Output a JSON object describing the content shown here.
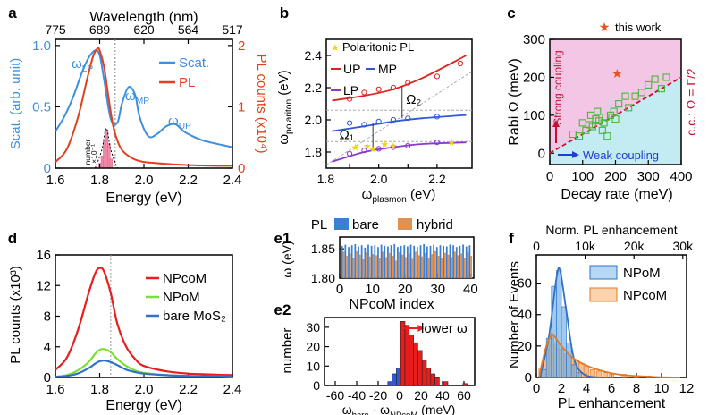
{
  "figure": {
    "title": "Strong plasmon-exciton coupling figure (panels a-f)"
  },
  "chart_data": [
    {
      "panel": "a",
      "type": "line",
      "xlabel": "Energy (eV)",
      "xlim": [
        1.6,
        2.4
      ],
      "xticks": [
        1.6,
        1.8,
        2.0,
        2.2,
        2.4
      ],
      "top_xlabel": "Wavelength (nm)",
      "top_ticks": [
        "775",
        "689",
        "620",
        "564",
        "517"
      ],
      "ylabel_left": "Scat. (arb. unit)",
      "ylim_left": [
        0,
        1.05
      ],
      "yticks_left": [
        0,
        0.5,
        1.0
      ],
      "ylabel_right": "PL counts (x10⁴)",
      "ylim_right": [
        0,
        2.1
      ],
      "yticks_right": [
        0,
        1,
        2
      ],
      "legend": [
        "Scat.",
        "PL"
      ],
      "annotations": [
        "ωLP",
        "ωMP",
        "ωUP",
        "number ×10⁻¹"
      ],
      "series": [
        {
          "name": "Scat.",
          "color": "#3d8fe0",
          "x": [
            1.6,
            1.64,
            1.68,
            1.72,
            1.75,
            1.78,
            1.8,
            1.82,
            1.85,
            1.88,
            1.9,
            1.93,
            1.96,
            1.98,
            2.02,
            2.06,
            2.1,
            2.14,
            2.18,
            2.22,
            2.26,
            2.3,
            2.35,
            2.4
          ],
          "y": [
            0.3,
            0.42,
            0.58,
            0.78,
            0.9,
            0.96,
            0.92,
            0.72,
            0.4,
            0.37,
            0.52,
            0.66,
            0.6,
            0.42,
            0.26,
            0.28,
            0.34,
            0.36,
            0.3,
            0.26,
            0.23,
            0.21,
            0.19,
            0.17
          ]
        },
        {
          "name": "PL",
          "color": "#e0401c",
          "x": [
            1.6,
            1.65,
            1.7,
            1.74,
            1.77,
            1.79,
            1.8,
            1.82,
            1.84,
            1.86,
            1.88,
            1.9,
            1.93,
            1.96,
            2.0,
            2.1,
            2.2,
            2.3,
            2.4
          ],
          "y": [
            0.1,
            0.3,
            0.8,
            1.4,
            1.82,
            1.95,
            1.92,
            1.65,
            1.15,
            0.7,
            0.45,
            0.3,
            0.2,
            0.14,
            0.1,
            0.07,
            0.05,
            0.04,
            0.04
          ]
        }
      ]
    },
    {
      "panel": "b",
      "type": "scatter",
      "xlabel": "ωplasmon (eV)",
      "ylabel": "ωpolariton (eV)",
      "xlim": [
        1.82,
        2.32
      ],
      "ylim": [
        1.7,
        2.5
      ],
      "xticks": [
        1.8,
        2.0,
        2.2
      ],
      "yticks": [
        1.8,
        2.0,
        2.2,
        2.4
      ],
      "legend": [
        "Polaritonic PL",
        "UP",
        "MP",
        "LP"
      ],
      "annotations": [
        "Ω₁",
        "Ω₂"
      ],
      "series": [
        {
          "name": "UP",
          "color": "#e02222",
          "x": [
            1.9,
            1.95,
            2.0,
            2.05,
            2.1,
            2.2,
            2.28
          ],
          "y": [
            2.13,
            2.17,
            2.19,
            2.2,
            2.23,
            2.27,
            2.35
          ]
        },
        {
          "name": "MP",
          "color": "#2f58d8",
          "x": [
            1.9,
            1.95,
            2.0,
            2.05,
            2.1,
            2.2
          ],
          "y": [
            1.98,
            1.97,
            1.99,
            2.0,
            2.01,
            2.02
          ]
        },
        {
          "name": "LP",
          "color": "#8a3ac8",
          "x": [
            1.9,
            1.95,
            2.0,
            2.05,
            2.1,
            2.2
          ],
          "y": [
            1.79,
            1.81,
            1.82,
            1.83,
            1.84,
            1.86
          ]
        },
        {
          "name": "Polaritonic PL",
          "color": "#f2d016",
          "x": [
            1.92,
            1.96,
            1.98,
            2.02,
            2.05,
            2.25
          ],
          "y": [
            1.83,
            1.84,
            1.82,
            1.85,
            1.84,
            1.86
          ]
        }
      ]
    },
    {
      "panel": "c",
      "type": "scatter",
      "xlabel": "Decay rate (meV)",
      "ylabel": "Rabi Ω (meV)",
      "xlim": [
        0,
        400
      ],
      "ylim": [
        -30,
        300
      ],
      "xticks": [
        0,
        100,
        200,
        300,
        400
      ],
      "yticks": [
        0,
        100,
        200,
        300
      ],
      "legend": [
        "this work"
      ],
      "regions": [
        "Strong coupling",
        "Weak coupling"
      ],
      "criterion": "c.c.: Ω = Γ/2",
      "this_work": {
        "x": 205,
        "y": 210
      },
      "points": [
        [
          70,
          50
        ],
        [
          90,
          45
        ],
        [
          110,
          60
        ],
        [
          120,
          75
        ],
        [
          130,
          70
        ],
        [
          140,
          90
        ],
        [
          150,
          85
        ],
        [
          160,
          60
        ],
        [
          165,
          80
        ],
        [
          170,
          95
        ],
        [
          175,
          45
        ],
        [
          185,
          100
        ],
        [
          195,
          110
        ],
        [
          200,
          90
        ],
        [
          210,
          130
        ],
        [
          230,
          150
        ],
        [
          240,
          120
        ],
        [
          260,
          150
        ],
        [
          280,
          160
        ],
        [
          300,
          180
        ],
        [
          320,
          195
        ],
        [
          340,
          170
        ],
        [
          355,
          200
        ],
        [
          100,
          80
        ],
        [
          125,
          100
        ],
        [
          145,
          110
        ]
      ]
    },
    {
      "panel": "d",
      "type": "line",
      "xlabel": "Energy (eV)",
      "ylabel": "PL counts (x10³)",
      "xlim": [
        1.6,
        2.4
      ],
      "ylim": [
        0,
        16
      ],
      "xticks": [
        1.6,
        1.8,
        2.0,
        2.2,
        2.4
      ],
      "yticks": [
        0,
        4,
        8,
        12,
        16
      ],
      "series": [
        {
          "name": "NPcoM",
          "color": "#e81e1e",
          "x": [
            1.6,
            1.65,
            1.7,
            1.75,
            1.78,
            1.8,
            1.82,
            1.85,
            1.88,
            1.92,
            1.96,
            2.0,
            2.1,
            2.2,
            2.3,
            2.4
          ],
          "y": [
            1.0,
            2.5,
            6.0,
            11.0,
            13.6,
            14.3,
            13.8,
            11.0,
            7.0,
            4.0,
            2.4,
            1.5,
            0.8,
            0.5,
            0.4,
            0.3
          ]
        },
        {
          "name": "NPoM",
          "color": "#7ce032",
          "x": [
            1.6,
            1.65,
            1.7,
            1.75,
            1.78,
            1.8,
            1.82,
            1.85,
            1.88,
            1.92,
            1.96,
            2.0,
            2.1,
            2.2,
            2.3,
            2.4
          ],
          "y": [
            0.1,
            0.3,
            0.9,
            2.0,
            3.1,
            3.6,
            3.7,
            3.3,
            2.4,
            1.5,
            0.9,
            0.6,
            0.3,
            0.2,
            0.15,
            0.1
          ]
        },
        {
          "name": "bare MoS₂",
          "color": "#2f72c8",
          "x": [
            1.6,
            1.65,
            1.7,
            1.75,
            1.78,
            1.8,
            1.82,
            1.85,
            1.88,
            1.92,
            1.96,
            2.0,
            2.1,
            2.2,
            2.3,
            2.4
          ],
          "y": [
            0.1,
            0.2,
            0.5,
            1.2,
            1.8,
            2.1,
            2.2,
            2.0,
            1.6,
            1.0,
            0.7,
            0.5,
            0.3,
            0.2,
            0.15,
            0.1
          ]
        }
      ]
    },
    {
      "panel": "e1",
      "type": "bar",
      "xlabel": "NPcoM index",
      "ylabel": "ω (eV)",
      "xlim": [
        0,
        41
      ],
      "ylim": [
        1.8,
        1.87
      ],
      "xticks": [
        0,
        10,
        20,
        30,
        40
      ],
      "yticks": [
        1.8,
        1.85
      ],
      "legend_prefix": "PL",
      "series": [
        {
          "name": "bare",
          "color": "#3a7fd4",
          "values": [
            1.855,
            1.857,
            1.853,
            1.856,
            1.858,
            1.854,
            1.856,
            1.852,
            1.857,
            1.855,
            1.856,
            1.853,
            1.857,
            1.855,
            1.854,
            1.856,
            1.858,
            1.853,
            1.855,
            1.856,
            1.854,
            1.857,
            1.855,
            1.853,
            1.856,
            1.858,
            1.854,
            1.855,
            1.857,
            1.853,
            1.856,
            1.855,
            1.854,
            1.857,
            1.856,
            1.853,
            1.855,
            1.857,
            1.854,
            1.856
          ]
        },
        {
          "name": "hybrid",
          "color": "#e0904f",
          "values": [
            1.845,
            1.838,
            1.842,
            1.835,
            1.846,
            1.84,
            1.832,
            1.844,
            1.837,
            1.841,
            1.839,
            1.834,
            1.845,
            1.836,
            1.843,
            1.838,
            1.83,
            1.844,
            1.84,
            1.836,
            1.842,
            1.833,
            1.845,
            1.839,
            1.837,
            1.843,
            1.835,
            1.841,
            1.846,
            1.838,
            1.834,
            1.843,
            1.84,
            1.836,
            1.845,
            1.839,
            1.842,
            1.835,
            1.844,
            1.838
          ]
        }
      ]
    },
    {
      "panel": "e2",
      "type": "bar",
      "xlabel": "ωbare - ωNPcoM (meV)",
      "ylabel": "number",
      "xlim": [
        -70,
        70
      ],
      "ylim": [
        0,
        35
      ],
      "xticks": [
        -60,
        -40,
        -20,
        0,
        20,
        40,
        60
      ],
      "yticks": [
        0,
        10,
        20,
        30
      ],
      "annotation": "lower ω",
      "bins": [
        {
          "center": -9,
          "value": 2,
          "color": "#2f58d8"
        },
        {
          "center": -5,
          "value": 6,
          "color": "#2f58d8"
        },
        {
          "center": -1,
          "value": 9,
          "color": "#2f58d8"
        },
        {
          "center": 3,
          "value": 33,
          "color": "#e81e1e"
        },
        {
          "center": 7,
          "value": 31,
          "color": "#e81e1e"
        },
        {
          "center": 11,
          "value": 26,
          "color": "#e81e1e"
        },
        {
          "center": 15,
          "value": 22,
          "color": "#e81e1e"
        },
        {
          "center": 19,
          "value": 18,
          "color": "#e81e1e"
        },
        {
          "center": 23,
          "value": 13,
          "color": "#e81e1e"
        },
        {
          "center": 27,
          "value": 9,
          "color": "#e81e1e"
        },
        {
          "center": 31,
          "value": 6,
          "color": "#e81e1e"
        },
        {
          "center": 35,
          "value": 4,
          "color": "#e81e1e"
        },
        {
          "center": 43,
          "value": 2,
          "color": "#e81e1e"
        },
        {
          "center": 61,
          "value": 1,
          "color": "#e81e1e"
        }
      ]
    },
    {
      "panel": "f",
      "type": "bar",
      "xlabel": "PL enhancement",
      "ylabel": "Number of Events",
      "top_xlabel": "Norm. PL enhancement",
      "top_ticks": [
        "0",
        "10k",
        "20k",
        "30k"
      ],
      "xlim": [
        0,
        12
      ],
      "ylim": [
        0,
        78
      ],
      "xticks": [
        0,
        2,
        4,
        6,
        8,
        10,
        12
      ],
      "yticks": [
        0,
        20,
        40,
        60
      ],
      "series": [
        {
          "name": "NPoM",
          "color": "#6aaee8",
          "x": [
            0.6,
            1.0,
            1.4,
            1.8,
            2.2,
            2.6,
            3.0,
            3.4
          ],
          "values": [
            5,
            25,
            58,
            68,
            45,
            22,
            8,
            3
          ]
        },
        {
          "name": "NPcoM",
          "color": "#f5a45c",
          "x": [
            0.4,
            0.8,
            1.2,
            1.6,
            2.0,
            2.4,
            2.8,
            3.2,
            3.6,
            4.0,
            4.5,
            5.0,
            5.5,
            6.0,
            7.0,
            8.0,
            9.0
          ],
          "values": [
            6,
            18,
            28,
            22,
            18,
            15,
            13,
            11,
            9,
            7,
            5,
            4,
            3,
            2,
            2,
            1,
            1
          ]
        }
      ]
    }
  ],
  "panels": {
    "a": {
      "letter": "a",
      "top_title": "Wavelength (nm)",
      "top_ticks": [
        "775",
        "689",
        "620",
        "564",
        "517"
      ],
      "xlabel": "Energy (eV)",
      "xticks": [
        "1.6",
        "1.8",
        "2.0",
        "2.2",
        "2.4"
      ],
      "ylabel_left": "Scat. (arb. unit)",
      "yticks_left": [
        "0",
        "0.5",
        "1.0"
      ],
      "ylabel_right": "PL counts (x10⁴)",
      "yticks_right": [
        "0",
        "1",
        "2"
      ],
      "legend_scat": "Scat.",
      "legend_pl": "PL",
      "lbl_lp": "ω",
      "lbl_lp_sub": "LP",
      "lbl_mp": "ω",
      "lbl_mp_sub": "MP",
      "lbl_up": "ω",
      "lbl_up_sub": "UP",
      "inset_label1": "number",
      "inset_label2": "×10⁻¹"
    },
    "b": {
      "letter": "b",
      "xlabel_main": "ω",
      "xlabel_sub": "plasmon",
      "xlabel_unit": " (eV)",
      "ylabel_main": "ω",
      "ylabel_sub": "polariton",
      "ylabel_unit": " (eV)",
      "xticks": [
        "1.8",
        "2.0",
        "2.2"
      ],
      "yticks": [
        "1.8",
        "2.0",
        "2.2",
        "2.4"
      ],
      "leg_pl": "Polaritonic PL",
      "leg_up": "UP",
      "leg_mp": "MP",
      "leg_lp": "LP",
      "omega1": "Ω₁",
      "omega2": "Ω₂"
    },
    "c": {
      "letter": "c",
      "xlabel": "Decay rate (meV)",
      "ylabel": "Rabi Ω (meV)",
      "xticks": [
        "0",
        "100",
        "200",
        "300",
        "400"
      ],
      "yticks": [
        "0",
        "100",
        "200",
        "300"
      ],
      "legend": "this work",
      "strong": "Strong coupling",
      "weak": "Weak coupling",
      "criterion": "c.c.: Ω = Γ/2"
    },
    "d": {
      "letter": "d",
      "xlabel": "Energy (eV)",
      "ylabel": "PL counts (x10³)",
      "xticks": [
        "1.6",
        "1.8",
        "2.0",
        "2.2",
        "2.4"
      ],
      "yticks": [
        "0",
        "4",
        "8",
        "12",
        "16"
      ],
      "leg1": "NPcoM",
      "leg2": "NPoM",
      "leg3": "bare MoS₂"
    },
    "e1": {
      "letter": "e1",
      "xlabel": "NPcoM index",
      "ylabel": "ω (eV)",
      "xticks": [
        "0",
        "10",
        "20",
        "30",
        "40"
      ],
      "yticks": [
        "1.80",
        "1.85"
      ],
      "legend_prefix": "PL",
      "leg_bare": "bare",
      "leg_hybrid": "hybrid"
    },
    "e2": {
      "letter": "e2",
      "xlabel_a": "ω",
      "xlabel_a_sub": "bare",
      "xlabel_b": " - ω",
      "xlabel_b_sub": "NPcoM",
      "xlabel_unit": " (meV)",
      "ylabel": "number",
      "xticks": [
        "-60",
        "-40",
        "-20",
        "0",
        "20",
        "40",
        "60"
      ],
      "yticks": [
        "0",
        "10",
        "20",
        "30"
      ],
      "annotation": "lower ω"
    },
    "f": {
      "letter": "f",
      "top_title": "Norm. PL enhancement",
      "top_ticks": [
        "0",
        "10k",
        "20k",
        "30k"
      ],
      "xlabel": "PL enhancement",
      "ylabel": "Number of Events",
      "xticks": [
        "0",
        "2",
        "4",
        "6",
        "8",
        "10",
        "12"
      ],
      "yticks": [
        "0",
        "20",
        "40",
        "60"
      ],
      "leg1": "NPoM",
      "leg2": "NPcoM"
    }
  }
}
